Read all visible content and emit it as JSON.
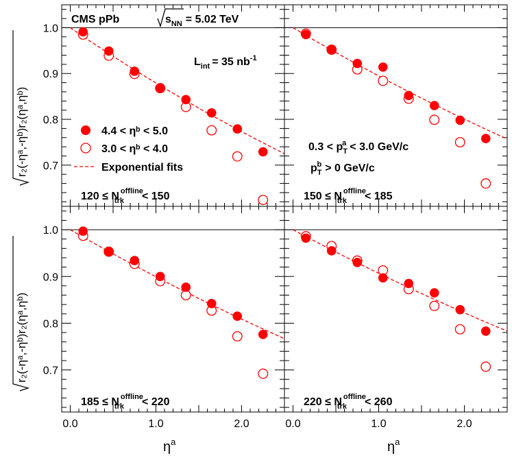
{
  "colors": {
    "marker": "#ff0000",
    "axis": "#000000"
  },
  "header": {
    "experiment": "CMS pPb",
    "energy_label": "s",
    "energy_sub": "NN",
    "energy_value": "= 5.02 TeV"
  },
  "lumi": {
    "prefix": "L",
    "sub": "int",
    "value": "= 35 nb",
    "sup": "-1"
  },
  "axes": {
    "xlabel": "η",
    "xlabel_sup": "a",
    "ylabel_main": "r₂(-ηᵃ,-ηᵇ)r₂(ηᵃ,ηᵇ)",
    "x_ticks": [
      "0.0",
      "1.0",
      "2.0"
    ],
    "y_ticks": [
      "0.7",
      "0.8",
      "0.9",
      "1.0"
    ]
  },
  "legend": {
    "filled": "4.4 < ηᵇ < 5.0",
    "open": "3.0 < ηᵇ < 4.0",
    "fit": "Exponential fits"
  },
  "kinematics": {
    "pta": {
      "lo": "0.3 < p",
      "sub": "T",
      "sup": "a",
      "hi": "< 3.0 GeV/c"
    },
    "ptb": {
      "lo": "p",
      "sub": "T",
      "sup": "b",
      "hi": "> 0 GeV/c"
    }
  },
  "chart_data": [
    {
      "type": "scatter",
      "panel": "top-left",
      "label": {
        "lo": "120 ≤ N",
        "sub": "trk",
        "sup": "offline",
        "hi": "< 150"
      },
      "xlim": [
        -0.1,
        2.5
      ],
      "ylim": [
        0.61,
        1.05
      ],
      "x": [
        0.15,
        0.45,
        0.75,
        1.05,
        1.35,
        1.65,
        1.95,
        2.25
      ],
      "series": [
        {
          "name": "4.4 < η^b < 5.0",
          "style": "filled",
          "values": [
            0.991,
            0.949,
            0.905,
            0.868,
            0.843,
            0.814,
            0.779,
            0.729
          ]
        },
        {
          "name": "3.0 < η^b < 4.0",
          "style": "open",
          "values": [
            0.985,
            0.939,
            0.899,
            0.868,
            0.827,
            0.776,
            0.719,
            0.624
          ]
        }
      ],
      "fit": {
        "name": "Exponential fits",
        "y_at_x0": 1.0,
        "y_at_xmax": 0.725
      }
    },
    {
      "type": "scatter",
      "panel": "top-right",
      "label": {
        "lo": "150 ≤ N",
        "sub": "trk",
        "sup": "offline",
        "hi": "< 185"
      },
      "xlim": [
        -0.1,
        2.5
      ],
      "ylim": [
        0.61,
        1.05
      ],
      "x": [
        0.15,
        0.45,
        0.75,
        1.05,
        1.35,
        1.65,
        1.95,
        2.25
      ],
      "series": [
        {
          "name": "4.4 < η^b < 5.0",
          "style": "filled",
          "values": [
            0.985,
            0.952,
            0.922,
            0.914,
            0.852,
            0.83,
            0.798,
            0.758
          ]
        },
        {
          "name": "3.0 < η^b < 4.0",
          "style": "open",
          "values": [
            0.987,
            0.952,
            0.909,
            0.884,
            0.845,
            0.799,
            0.75,
            0.66
          ]
        }
      ],
      "fit": {
        "name": "Exponential fits",
        "y_at_x0": 1.0,
        "y_at_xmax": 0.757
      }
    },
    {
      "type": "scatter",
      "panel": "bottom-left",
      "label": {
        "lo": "185 ≤ N",
        "sub": "trk",
        "sup": "offline",
        "hi": "< 220"
      },
      "xlim": [
        -0.1,
        2.5
      ],
      "ylim": [
        0.61,
        1.05
      ],
      "x": [
        0.15,
        0.45,
        0.75,
        1.05,
        1.35,
        1.65,
        1.95,
        2.25
      ],
      "series": [
        {
          "name": "4.4 < η^b < 5.0",
          "style": "filled",
          "values": [
            0.997,
            0.953,
            0.934,
            0.9,
            0.877,
            0.842,
            0.815,
            0.776
          ]
        },
        {
          "name": "3.0 < η^b < 4.0",
          "style": "open",
          "values": [
            0.987,
            0.953,
            0.927,
            0.89,
            0.86,
            0.827,
            0.772,
            0.692
          ]
        }
      ],
      "fit": {
        "name": "Exponential fits",
        "y_at_x0": 1.0,
        "y_at_xmax": 0.767
      }
    },
    {
      "type": "scatter",
      "panel": "bottom-right",
      "label": {
        "lo": "220 ≤ N",
        "sub": "trk",
        "sup": "offline",
        "hi": "< 260"
      },
      "xlim": [
        -0.1,
        2.5
      ],
      "ylim": [
        0.61,
        1.05
      ],
      "x": [
        0.15,
        0.45,
        0.75,
        1.05,
        1.35,
        1.65,
        1.95,
        2.25
      ],
      "series": [
        {
          "name": "4.4 < η^b < 5.0",
          "style": "filled",
          "values": [
            0.982,
            0.955,
            0.93,
            0.897,
            0.885,
            0.865,
            0.829,
            0.783
          ]
        },
        {
          "name": "3.0 < η^b < 4.0",
          "style": "open",
          "values": [
            0.986,
            0.965,
            0.934,
            0.913,
            0.873,
            0.837,
            0.787,
            0.707
          ]
        }
      ],
      "fit": {
        "name": "Exponential fits",
        "y_at_x0": 1.0,
        "y_at_xmax": 0.783
      }
    }
  ]
}
